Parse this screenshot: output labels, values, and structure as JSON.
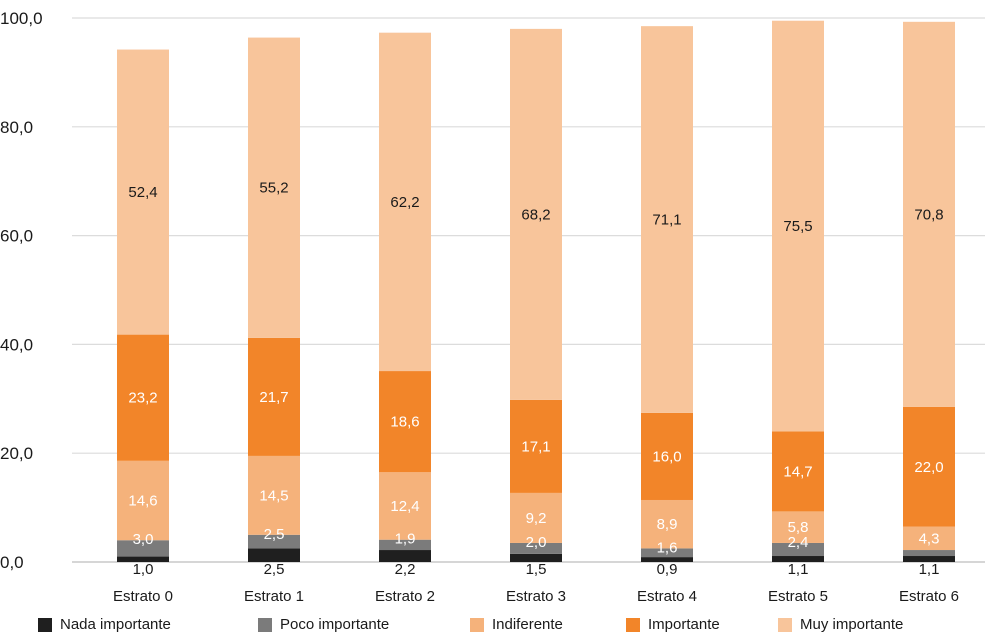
{
  "chart_data": {
    "type": "bar",
    "stacked": true,
    "categories": [
      "Estrato 0",
      "Estrato 1",
      "Estrato 2",
      "Estrato 3",
      "Estrato 4",
      "Estrato 5",
      "Estrato 6"
    ],
    "series": [
      {
        "name": "Nada importante",
        "color": "#1f1f1f",
        "label_color": "#1a1a1a",
        "values": [
          1.0,
          2.5,
          2.2,
          1.5,
          0.9,
          1.1,
          1.1
        ],
        "labels": [
          "1,0",
          "2,5",
          "2,2",
          "1,5",
          "0,9",
          "1,1",
          "1,1"
        ]
      },
      {
        "name": "Poco importante",
        "color": "#7b7b7b",
        "label_color": "#ffffff",
        "values": [
          3.0,
          2.5,
          1.9,
          2.0,
          1.6,
          2.4,
          1.1
        ],
        "labels": [
          "3,0",
          "2,5",
          "1,9",
          "2,0",
          "1,6",
          "2,4",
          ""
        ]
      },
      {
        "name": "Indiferente",
        "color": "#f5b27b",
        "label_color": "#ffffff",
        "values": [
          14.6,
          14.5,
          12.4,
          9.2,
          8.9,
          5.8,
          4.3
        ],
        "labels": [
          "14,6",
          "14,5",
          "12,4",
          "9,2",
          "8,9",
          "5,8",
          "4,3"
        ]
      },
      {
        "name": "Importante",
        "color": "#f28529",
        "label_color": "#ffffff",
        "values": [
          23.2,
          21.7,
          18.6,
          17.1,
          16.0,
          14.7,
          22.0
        ],
        "labels": [
          "23,2",
          "21,7",
          "18,6",
          "17,1",
          "16,0",
          "14,7",
          "22,0"
        ]
      },
      {
        "name": "Muy importante",
        "color": "#f8c59b",
        "label_color": "#1a1a1a",
        "values": [
          52.4,
          55.2,
          62.2,
          68.2,
          71.1,
          75.5,
          70.8
        ],
        "labels": [
          "52,4",
          "55,2",
          "62,2",
          "68,2",
          "71,1",
          "75,5",
          "70,8"
        ]
      }
    ],
    "ylim": [
      0,
      100
    ],
    "yticks": [
      0,
      20,
      40,
      60,
      80,
      100
    ],
    "ytick_labels": [
      "0,0",
      "20,0",
      "40,0",
      "60,0",
      "80,0",
      "100,0"
    ],
    "grid": true,
    "legend_position": "bottom",
    "title": "",
    "xlabel": "",
    "ylabel": ""
  }
}
